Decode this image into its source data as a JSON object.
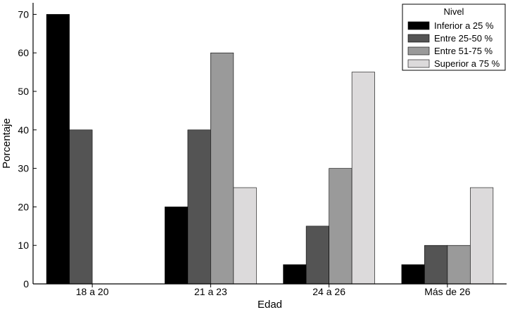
{
  "chart_data": {
    "type": "bar",
    "title": "",
    "xlabel": "Edad",
    "ylabel": "Porcentaje",
    "categories": [
      "18 a 20",
      "21 a 23",
      "24 a 26",
      "Más de 26"
    ],
    "ylim": [
      0,
      73
    ],
    "yticks": [
      0,
      10,
      20,
      30,
      40,
      50,
      60,
      70
    ],
    "grid": false,
    "legend": {
      "title": "Nivel",
      "position": "top-right"
    },
    "series": [
      {
        "name": "Inferior a 25 %",
        "color": "#000000",
        "values": [
          70,
          20,
          5,
          5
        ]
      },
      {
        "name": "Entre 25-50 %",
        "color": "#545454",
        "values": [
          40,
          40,
          15,
          10
        ]
      },
      {
        "name": "Entre 51-75 %",
        "color": "#9a9a9a",
        "values": [
          0,
          60,
          30,
          10
        ]
      },
      {
        "name": "Superior a 75 %",
        "color": "#dcdadb",
        "values": [
          0,
          25,
          55,
          25
        ]
      }
    ]
  }
}
